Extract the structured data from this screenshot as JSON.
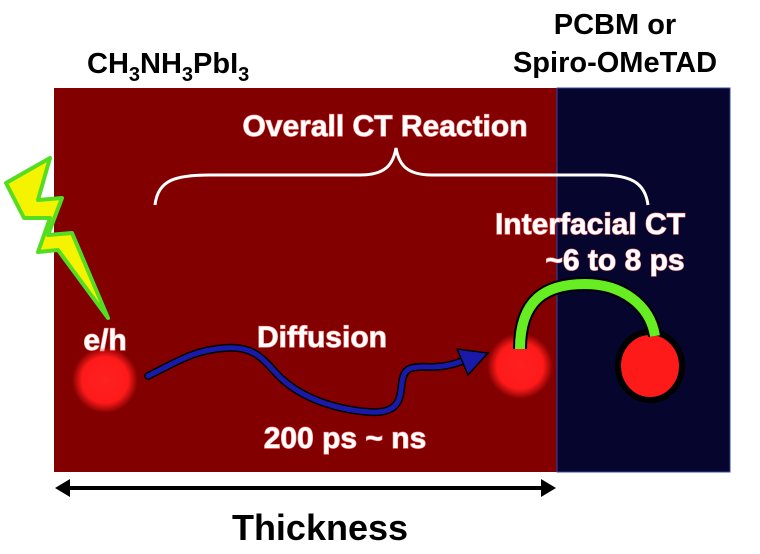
{
  "labels": {
    "perovskite": {
      "base1": "CH",
      "sub1": "3",
      "base2": "NH",
      "sub2": "3",
      "base3": "PbI",
      "sub3": "3"
    },
    "transport_line1": "PCBM or",
    "transport_line2": "Spiro-OMeTAD",
    "overall": "Overall CT Reaction",
    "interfacial": "Interfacial CT",
    "interfacial_time": "~6 to 8 ps",
    "carrier": "e/h",
    "diffusion": "Diffusion",
    "diffusion_time": "200 ps ~ ns",
    "thickness": "Thickness"
  },
  "colors": {
    "perovskite_layer": "#820000",
    "transport_layer": "#05052e",
    "carrier": "#ff1a1a",
    "diffusion_arrow": "#1a1aa8",
    "transfer_arrow": "#66ee22",
    "lightning": "#f4f400"
  }
}
